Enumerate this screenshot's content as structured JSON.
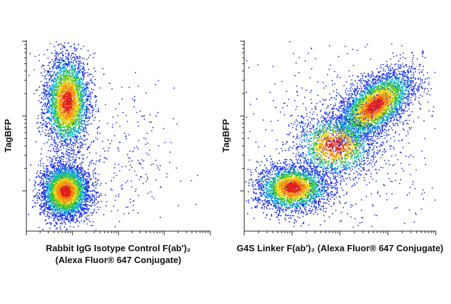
{
  "chart_data": [
    {
      "type": "density",
      "y_label": "TagBFP",
      "x_label": [
        "Rabbit IgG Isotype Control F(ab')₂",
        "(Alexa Fluor® 647 Conjugate)"
      ],
      "populations": [
        {
          "x": 0.22,
          "y": 0.68,
          "sx": 0.06,
          "sy": 0.12
        },
        {
          "x": 0.21,
          "y": 0.21,
          "sx": 0.065,
          "sy": 0.07
        },
        {
          "x": 0.5,
          "y": 0.35,
          "sx": 0.15,
          "sy": 0.2
        }
      ]
    },
    {
      "type": "density",
      "y_label": "TagBFP",
      "x_label": [
        "G4S Linker F(ab')₂ (Alexa Fluor® 647 Conjugate)"
      ],
      "populations": [
        {
          "x": 0.25,
          "y": 0.23,
          "sx": 0.09,
          "sy": 0.06
        },
        {
          "x": 0.68,
          "y": 0.66,
          "sx": 0.1,
          "sy": 0.09
        },
        {
          "x": 0.47,
          "y": 0.45,
          "sx": 0.1,
          "sy": 0.08
        },
        {
          "x": 0.55,
          "y": 0.5,
          "sx": 0.25,
          "sy": 0.25
        }
      ]
    }
  ]
}
